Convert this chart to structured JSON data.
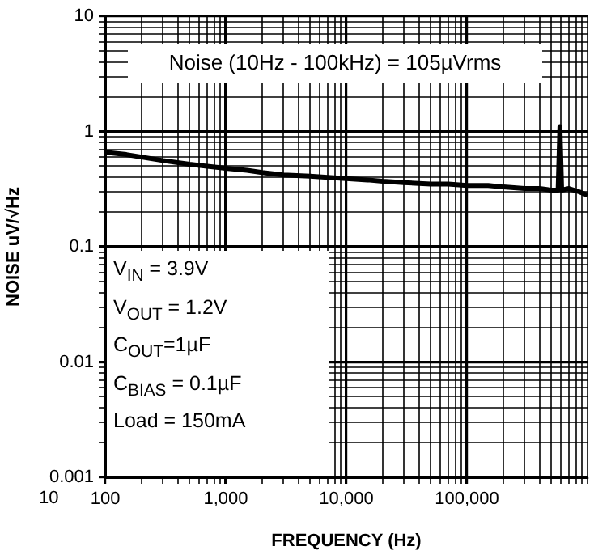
{
  "chart_data": {
    "type": "line",
    "xlabel": "FREQUENCY (Hz)",
    "ylabel": "NOISE uV/√Hz",
    "x": [
      100,
      150,
      200,
      300,
      500,
      700,
      1000,
      1500,
      2000,
      3000,
      5000,
      7000,
      10000,
      15000,
      20000,
      30000,
      50000,
      70000,
      100000,
      150000,
      200000,
      300000,
      400000,
      500000,
      570000,
      590000,
      610000,
      700000,
      850000,
      1000000
    ],
    "series": [
      {
        "color": "#000000",
        "values": [
          0.66,
          0.63,
          0.6,
          0.56,
          0.52,
          0.5,
          0.48,
          0.46,
          0.44,
          0.42,
          0.41,
          0.4,
          0.39,
          0.38,
          0.37,
          0.36,
          0.35,
          0.35,
          0.34,
          0.34,
          0.33,
          0.32,
          0.32,
          0.31,
          0.31,
          1.1,
          0.31,
          0.32,
          0.3,
          0.28
        ]
      }
    ],
    "xlim": [
      100,
      1000000
    ],
    "ylim": [
      0.001,
      10
    ],
    "xticks": [
      {
        "value": 100,
        "label": "100"
      },
      {
        "value": 200,
        "label": null
      },
      {
        "value": 300,
        "label": null
      },
      {
        "value": 400,
        "label": null
      },
      {
        "value": 500,
        "label": null
      },
      {
        "value": 600,
        "label": null
      },
      {
        "value": 700,
        "label": null
      },
      {
        "value": 800,
        "label": null
      },
      {
        "value": 900,
        "label": null
      },
      {
        "value": 1000,
        "label": "1,000"
      },
      {
        "value": 2000,
        "label": null
      },
      {
        "value": 3000,
        "label": null
      },
      {
        "value": 4000,
        "label": null
      },
      {
        "value": 5000,
        "label": null
      },
      {
        "value": 6000,
        "label": null
      },
      {
        "value": 7000,
        "label": null
      },
      {
        "value": 8000,
        "label": null
      },
      {
        "value": 9000,
        "label": null
      },
      {
        "value": 10000,
        "label": "10,000"
      },
      {
        "value": 20000,
        "label": null
      },
      {
        "value": 30000,
        "label": null
      },
      {
        "value": 40000,
        "label": null
      },
      {
        "value": 50000,
        "label": null
      },
      {
        "value": 60000,
        "label": null
      },
      {
        "value": 70000,
        "label": null
      },
      {
        "value": 80000,
        "label": null
      },
      {
        "value": 90000,
        "label": null
      },
      {
        "value": 100000,
        "label": "100,000"
      },
      {
        "value": 200000,
        "label": null
      },
      {
        "value": 300000,
        "label": null
      },
      {
        "value": 400000,
        "label": null
      },
      {
        "value": 500000,
        "label": null
      },
      {
        "value": 600000,
        "label": null
      },
      {
        "value": 700000,
        "label": null
      },
      {
        "value": 800000,
        "label": null
      },
      {
        "value": 900000,
        "label": null
      },
      {
        "value": 1000000,
        "label": null
      }
    ],
    "yticks": [
      0.001,
      {
        "value": 0.002,
        "label": null
      },
      {
        "value": 0.003,
        "label": null
      },
      {
        "value": 0.004,
        "label": null
      },
      {
        "value": 0.005,
        "label": null
      },
      {
        "value": 0.006,
        "label": null
      },
      {
        "value": 0.007,
        "label": null
      },
      {
        "value": 0.008,
        "label": null
      },
      {
        "value": 0.009,
        "label": null
      },
      0.01,
      {
        "value": 0.02,
        "label": null
      },
      {
        "value": 0.03,
        "label": null
      },
      {
        "value": 0.04,
        "label": null
      },
      {
        "value": 0.05,
        "label": null
      },
      {
        "value": 0.06,
        "label": null
      },
      {
        "value": 0.07,
        "label": null
      },
      {
        "value": 0.08,
        "label": null
      },
      {
        "value": 0.09,
        "label": null
      },
      0.1,
      {
        "value": 0.2,
        "label": null
      },
      {
        "value": 0.3,
        "label": null
      },
      {
        "value": 0.4,
        "label": null
      },
      {
        "value": 0.5,
        "label": null
      },
      {
        "value": 0.6,
        "label": null
      },
      {
        "value": 0.7,
        "label": null
      },
      {
        "value": 0.8,
        "label": null
      },
      {
        "value": 0.9,
        "label": null
      },
      1,
      {
        "value": 2,
        "label": null
      },
      {
        "value": 3,
        "label": null
      },
      {
        "value": 4,
        "label": null
      },
      {
        "value": 5,
        "label": null
      },
      {
        "value": 6,
        "label": null
      },
      {
        "value": 7,
        "label": null
      },
      {
        "value": 8,
        "label": null
      },
      {
        "value": 9,
        "label": null
      },
      10
    ],
    "log": "xy",
    "grid": true,
    "legend": false,
    "marker": "none",
    "line_style": "solid",
    "annotations": [
      "10",
      "Noise (10Hz - 100kHz) = 105µVrms",
      "V$_{IN}$ = 3.9V",
      "V$_{OUT}$ = 1.2V",
      "C$_{OUT}$=1µF",
      "C$_{BIAS}$ = 0.1µF",
      "Load = 150mA"
    ]
  }
}
